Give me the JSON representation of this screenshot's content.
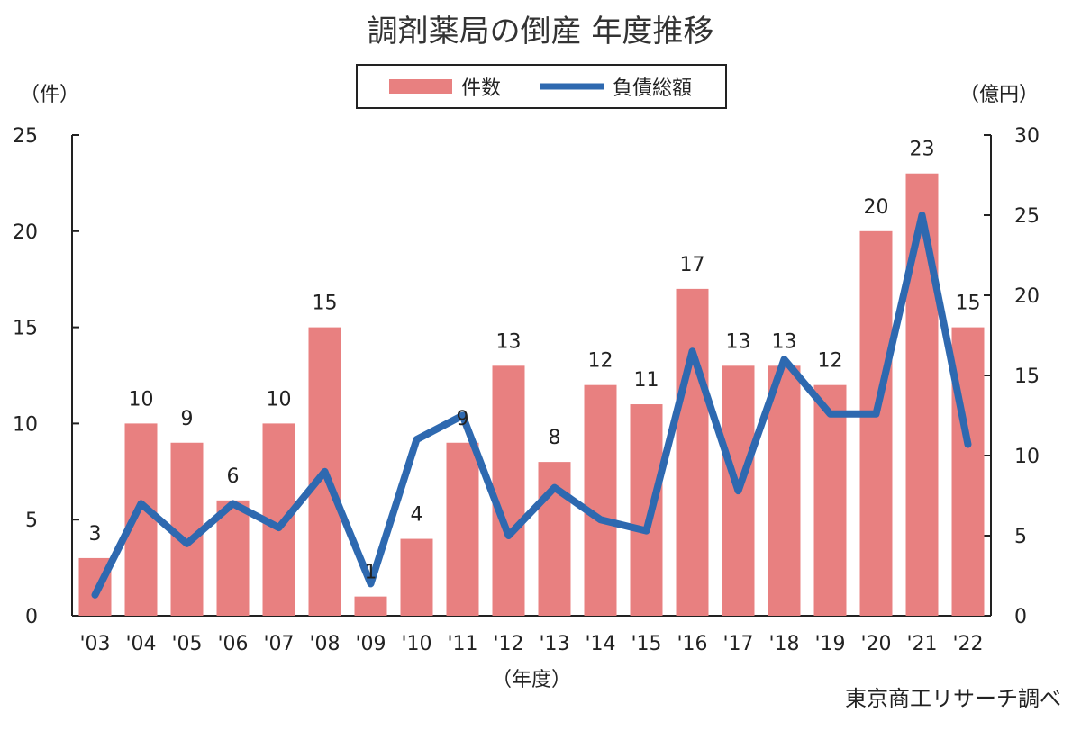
{
  "chart_data": {
    "type": "bar+line",
    "title": "調剤薬局の倒産 年度推移",
    "categories": [
      "'03",
      "'04",
      "'05",
      "'06",
      "'07",
      "'08",
      "'09",
      "'10",
      "'11",
      "'12",
      "'13",
      "'14",
      "'15",
      "'16",
      "'17",
      "'18",
      "'19",
      "'20",
      "'21",
      "'22"
    ],
    "series": [
      {
        "name": "件数",
        "type": "bar",
        "axis": "left",
        "color": "#e88080",
        "values": [
          3,
          10,
          9,
          6,
          10,
          15,
          1,
          4,
          9,
          13,
          8,
          12,
          11,
          17,
          13,
          13,
          12,
          20,
          23,
          15
        ]
      },
      {
        "name": "負債総額",
        "type": "line",
        "axis": "right",
        "color": "#2e69b0",
        "values": [
          1.3,
          7.0,
          4.5,
          7.0,
          5.5,
          9.0,
          2.0,
          11.0,
          12.5,
          5.0,
          8.0,
          6.0,
          5.3,
          16.5,
          7.8,
          16.0,
          12.6,
          12.6,
          25.0,
          10.7
        ]
      }
    ],
    "y_left": {
      "label": "（件）",
      "min": 0,
      "max": 25,
      "ticks": [
        "0",
        "5",
        "10",
        "15",
        "20",
        "25"
      ]
    },
    "y_right": {
      "label": "（億円）",
      "min": 0,
      "max": 30,
      "ticks": [
        "0",
        "5",
        "10",
        "15",
        "20",
        "25",
        "30"
      ]
    },
    "xlabel": "（年度）",
    "legend": "top-center",
    "grid": false,
    "source": "東京商工リサーチ調べ"
  }
}
